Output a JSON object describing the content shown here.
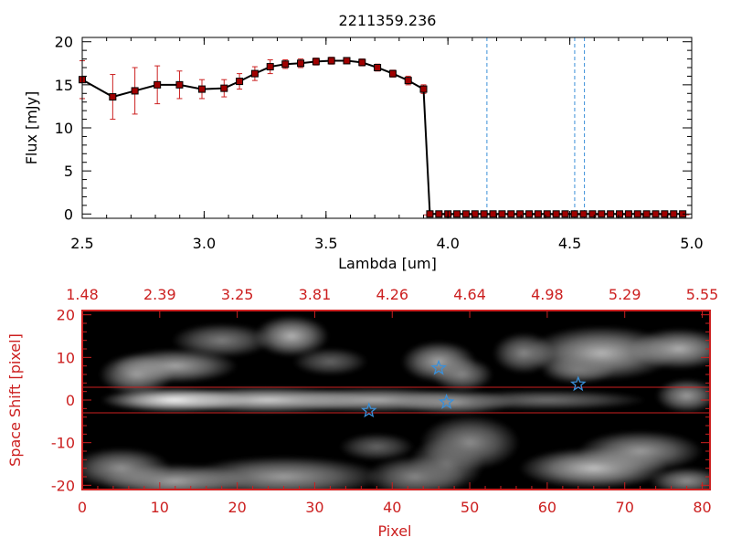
{
  "chart_data": [
    {
      "type": "line",
      "title": "2211359.236",
      "xlabel": "Lambda [um]",
      "ylabel": "Flux [mJy]",
      "xlim": [
        2.5,
        5.0
      ],
      "ylim": [
        -0.5,
        20.5
      ],
      "x_ticks": [
        "2.5",
        "3.0",
        "3.5",
        "4.0",
        "4.5",
        "5.0"
      ],
      "y_ticks": [
        "0",
        "5",
        "10",
        "15",
        "20"
      ],
      "x": [
        2.5,
        2.625,
        2.716,
        2.808,
        2.899,
        2.991,
        3.082,
        3.145,
        3.208,
        3.271,
        3.333,
        3.396,
        3.459,
        3.522,
        3.585,
        3.648,
        3.711,
        3.774,
        3.837,
        3.9,
        3.926,
        3.963,
        4.0,
        4.037,
        4.074,
        4.111,
        4.148,
        4.185,
        4.222,
        4.259,
        4.296,
        4.333,
        4.37,
        4.407,
        4.444,
        4.481,
        4.519,
        4.556,
        4.593,
        4.63,
        4.667,
        4.704,
        4.741,
        4.778,
        4.815,
        4.852,
        4.889,
        4.926,
        4.963
      ],
      "y": [
        15.6,
        13.6,
        14.3,
        15.0,
        15.0,
        14.5,
        14.6,
        15.4,
        16.3,
        17.1,
        17.4,
        17.5,
        17.7,
        17.8,
        17.8,
        17.6,
        17.0,
        16.3,
        15.5,
        14.5,
        0,
        0,
        0,
        0,
        0,
        0,
        0,
        0,
        0,
        0,
        0,
        0,
        0,
        0,
        0,
        0,
        0,
        0,
        0,
        0,
        0,
        0,
        0,
        0,
        0,
        0,
        0,
        0,
        0
      ],
      "yerr": [
        2.2,
        2.6,
        2.7,
        2.2,
        1.6,
        1.1,
        1.0,
        0.9,
        0.8,
        0.8,
        0.5,
        0.5,
        0.4,
        0.4,
        0.3,
        0.4,
        0.4,
        0.4,
        0.5,
        0.5,
        0,
        0,
        0,
        0,
        0,
        0,
        0,
        0,
        0,
        0,
        0,
        0,
        0,
        0,
        0,
        0,
        0,
        0,
        0,
        0,
        0,
        0,
        0,
        0,
        0,
        0,
        0,
        0,
        0
      ],
      "vlines": [
        4.16,
        4.52,
        4.56
      ],
      "line_color": "#000000",
      "marker_color": "#a00000",
      "errorbar_color": "#cc2020",
      "vline_color": "#3a8fd8"
    },
    {
      "type": "heatmap",
      "xlabel": "Pixel",
      "ylabel": "Space Shift [pixel]",
      "xlim": [
        0,
        81
      ],
      "ylim": [
        -21,
        21
      ],
      "x_ticks": [
        "0",
        "10",
        "20",
        "30",
        "40",
        "50",
        "60",
        "70",
        "80"
      ],
      "y_ticks": [
        "-20",
        "-10",
        "0",
        "10",
        "20"
      ],
      "top_ticks": [
        "1.48",
        "2.39",
        "3.25",
        "3.81",
        "4.26",
        "4.64",
        "4.98",
        "5.29",
        "5.55"
      ],
      "hlines": [
        3,
        -3
      ],
      "stars": [
        {
          "x": 46,
          "y": 7.5
        },
        {
          "x": 47,
          "y": -0.5
        },
        {
          "x": 37,
          "y": -2.5
        },
        {
          "x": 64,
          "y": 3.7
        }
      ],
      "blobs": [
        {
          "x": 12,
          "y": 0,
          "sx": 6,
          "sy": 1.8,
          "v": 1.0
        },
        {
          "x": 24,
          "y": 0,
          "sx": 9,
          "sy": 1.9,
          "v": 0.78
        },
        {
          "x": 38,
          "y": 0,
          "sx": 8,
          "sy": 1.8,
          "v": 0.6
        },
        {
          "x": 48,
          "y": -0.5,
          "sx": 5,
          "sy": 1.8,
          "v": 0.5
        },
        {
          "x": 60,
          "y": 0,
          "sx": 8,
          "sy": 1.5,
          "v": 0.28
        },
        {
          "x": 7,
          "y": 6,
          "sx": 3,
          "sy": 3,
          "v": 0.5
        },
        {
          "x": 12,
          "y": 8,
          "sx": 5,
          "sy": 2.5,
          "v": 0.55
        },
        {
          "x": 27,
          "y": 15,
          "sx": 3,
          "sy": 3,
          "v": 0.62
        },
        {
          "x": 18,
          "y": 14,
          "sx": 4,
          "sy": 2.5,
          "v": 0.35
        },
        {
          "x": 46,
          "y": 9,
          "sx": 3,
          "sy": 3,
          "v": 0.55
        },
        {
          "x": 49,
          "y": 6,
          "sx": 2.5,
          "sy": 2.5,
          "v": 0.4
        },
        {
          "x": 57,
          "y": 11,
          "sx": 2.5,
          "sy": 3,
          "v": 0.4
        },
        {
          "x": 67,
          "y": 11,
          "sx": 6,
          "sy": 4,
          "v": 0.62
        },
        {
          "x": 77,
          "y": 12,
          "sx": 4,
          "sy": 3,
          "v": 0.6
        },
        {
          "x": 64,
          "y": 7,
          "sx": 3,
          "sy": 2,
          "v": 0.35
        },
        {
          "x": 78,
          "y": 1,
          "sx": 2.5,
          "sy": 2.5,
          "v": 0.5
        },
        {
          "x": 5,
          "y": -16,
          "sx": 4,
          "sy": 3,
          "v": 0.45
        },
        {
          "x": 12,
          "y": -19,
          "sx": 6,
          "sy": 2.5,
          "v": 0.55
        },
        {
          "x": 26,
          "y": -18,
          "sx": 8,
          "sy": 3,
          "v": 0.5
        },
        {
          "x": 43,
          "y": -18,
          "sx": 4,
          "sy": 3,
          "v": 0.4
        },
        {
          "x": 50,
          "y": -10,
          "sx": 4,
          "sy": 4,
          "v": 0.42
        },
        {
          "x": 47,
          "y": -15,
          "sx": 3,
          "sy": 4,
          "v": 0.3
        },
        {
          "x": 66,
          "y": -16,
          "sx": 6,
          "sy": 3,
          "v": 0.68
        },
        {
          "x": 72,
          "y": -12,
          "sx": 5,
          "sy": 3,
          "v": 0.5
        },
        {
          "x": 78,
          "y": -19,
          "sx": 3,
          "sy": 2,
          "v": 0.45
        },
        {
          "x": 32,
          "y": 9,
          "sx": 3,
          "sy": 2,
          "v": 0.22
        },
        {
          "x": 38,
          "y": -11,
          "sx": 3,
          "sy": 2,
          "v": 0.22
        }
      ],
      "axis_color": "#cc2020",
      "line_color": "#cc2020",
      "star_color": "#3a8fd8"
    }
  ]
}
